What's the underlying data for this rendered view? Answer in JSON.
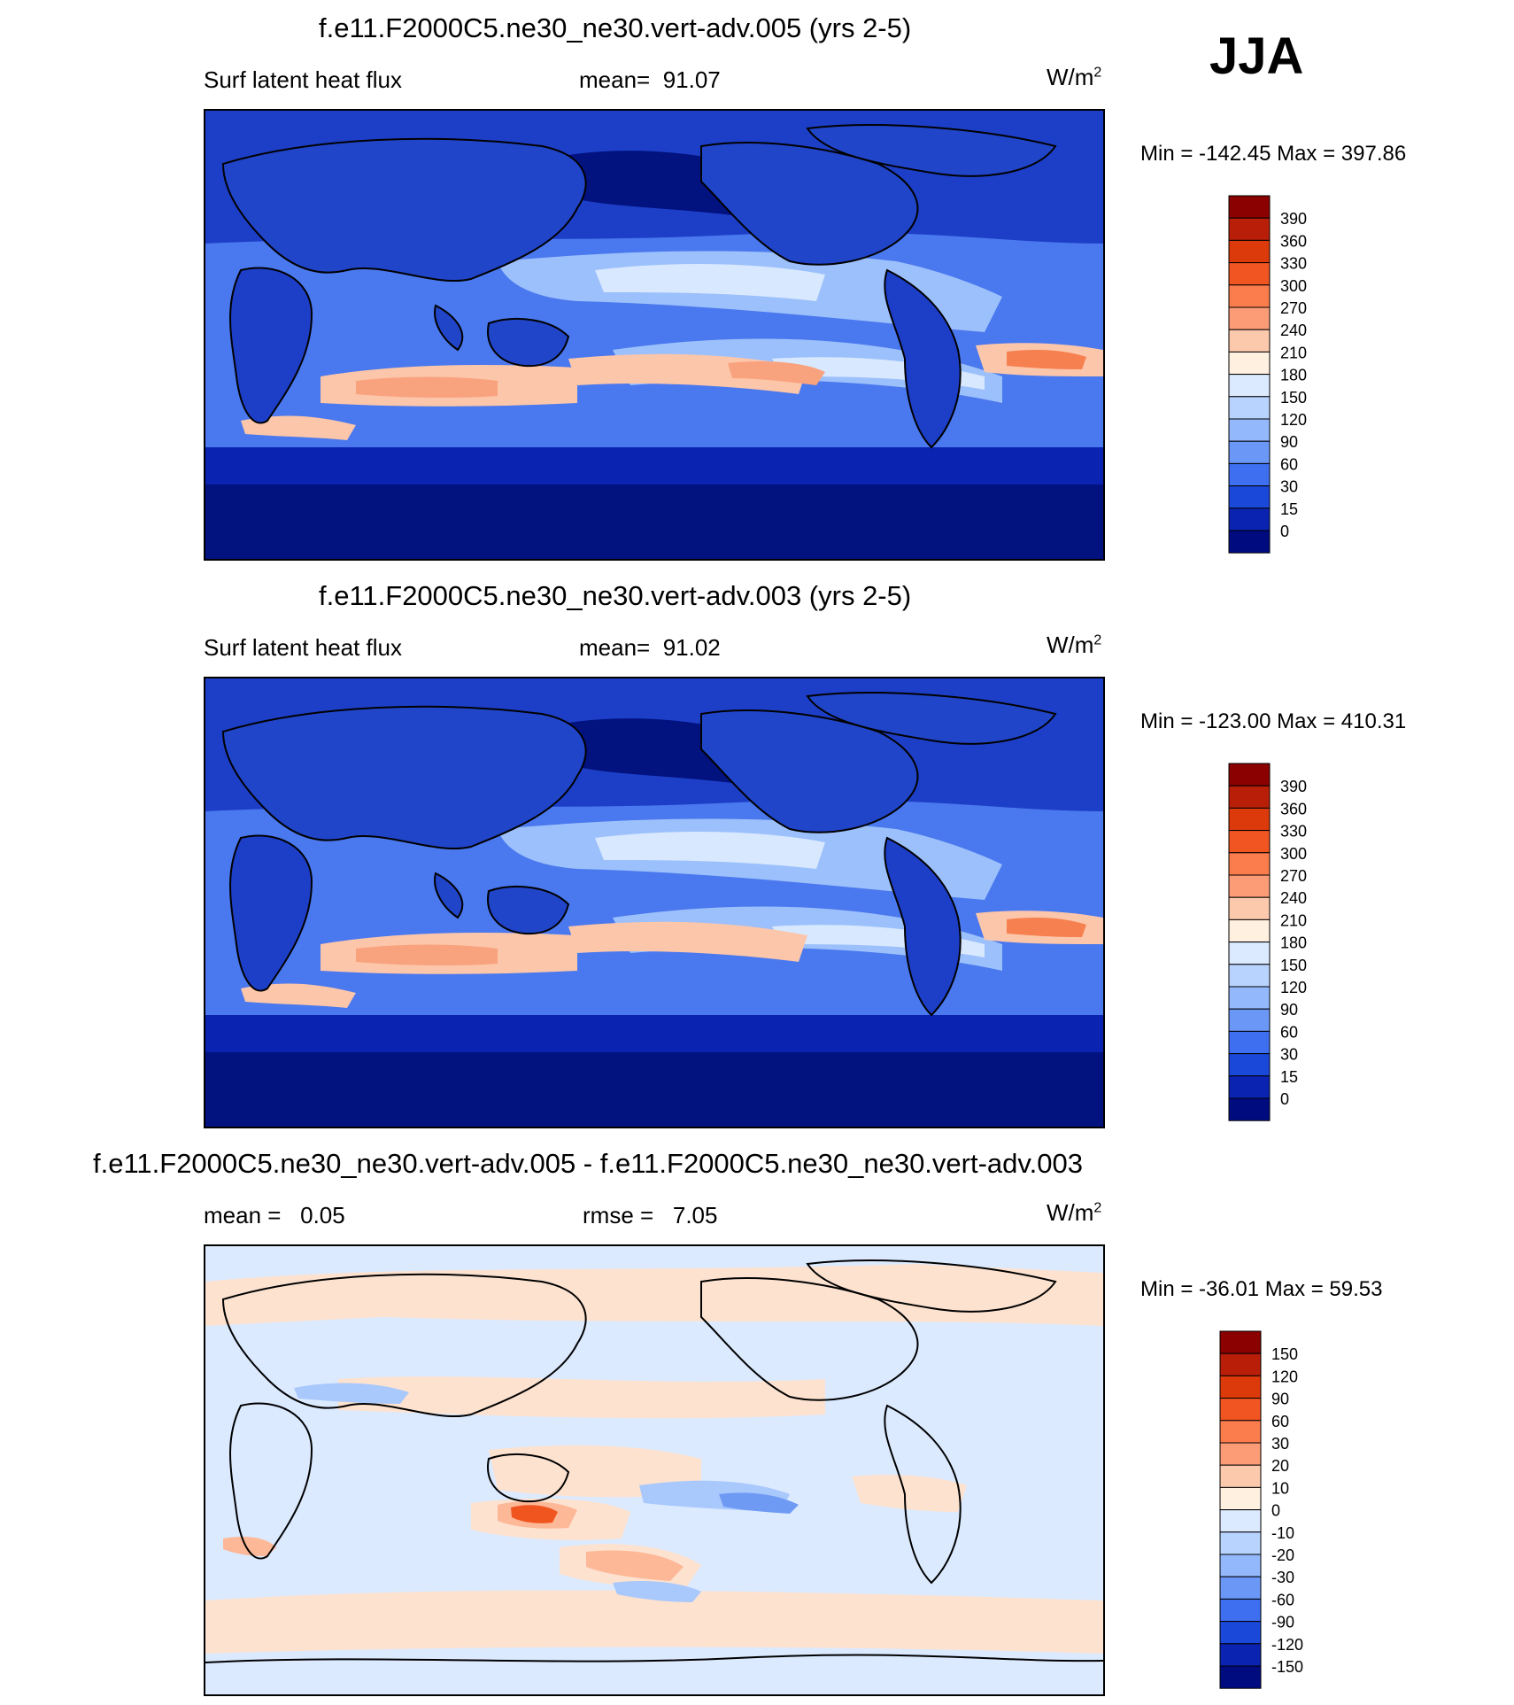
{
  "season": "JJA",
  "panels": [
    {
      "title": "f.e11.F2000C5.ne30_ne30.vert-adv.005 (yrs 2-5)",
      "left_label": "Surf latent heat flux",
      "stat_label": "mean=",
      "stat_value": "91.07",
      "units_base": "W/m",
      "units_exp": "2",
      "minmax": "Min = -142.45 Max = 397.86",
      "colorbar": {
        "levels": [
          "390",
          "360",
          "330",
          "300",
          "270",
          "240",
          "210",
          "180",
          "150",
          "120",
          "90",
          "60",
          "30",
          "15",
          "0"
        ],
        "colors": [
          "#8b0000",
          "#b81e08",
          "#dc3a0a",
          "#f05522",
          "#fb7c4d",
          "#fc9c76",
          "#fdc9ad",
          "#fff0e0",
          "#dbeaff",
          "#b8d4fe",
          "#93b9fc",
          "#6b97f6",
          "#3d6ff0",
          "#1a48d8",
          "#0a23b0",
          "#000b80"
        ]
      },
      "map_palette": {
        "ocean_deep": "#02127f",
        "ocean_mid": "#1d3fc8",
        "ocean": "#4a78ee",
        "band": "#9cc0fb",
        "pale": "#d8e8ff",
        "warm": "#fcc6aa",
        "hot": "#f6804f",
        "land": "#2045c8",
        "coast": "#000000"
      }
    },
    {
      "title": "f.e11.F2000C5.ne30_ne30.vert-adv.003 (yrs 2-5)",
      "left_label": "Surf latent heat flux",
      "stat_label": "mean=",
      "stat_value": "91.02",
      "units_base": "W/m",
      "units_exp": "2",
      "minmax": "Min = -123.00 Max = 410.31",
      "colorbar": {
        "levels": [
          "390",
          "360",
          "330",
          "300",
          "270",
          "240",
          "210",
          "180",
          "150",
          "120",
          "90",
          "60",
          "30",
          "15",
          "0"
        ],
        "colors": [
          "#8b0000",
          "#b81e08",
          "#dc3a0a",
          "#f05522",
          "#fb7c4d",
          "#fc9c76",
          "#fdc9ad",
          "#fff0e0",
          "#dbeaff",
          "#b8d4fe",
          "#93b9fc",
          "#6b97f6",
          "#3d6ff0",
          "#1a48d8",
          "#0a23b0",
          "#000b80"
        ]
      },
      "map_palette": {
        "ocean_deep": "#02127f",
        "ocean_mid": "#1d3fc8",
        "ocean": "#4a78ee",
        "band": "#9cc0fb",
        "pale": "#d8e8ff",
        "warm": "#fcc6aa",
        "hot": "#f6804f",
        "land": "#2045c8",
        "coast": "#000000"
      }
    },
    {
      "title": "f.e11.F2000C5.ne30_ne30.vert-adv.005 - f.e11.F2000C5.ne30_ne30.vert-adv.003",
      "left_label": "mean =",
      "left_value": "0.05",
      "stat_label": "rmse =",
      "stat_value": "7.05",
      "units_base": "W/m",
      "units_exp": "2",
      "minmax": "Min = -36.01 Max =  59.53",
      "colorbar": {
        "levels": [
          "150",
          "120",
          "90",
          "60",
          "30",
          "20",
          "10",
          "0",
          "-10",
          "-20",
          "-30",
          "-60",
          "-90",
          "-120",
          "-150"
        ],
        "colors": [
          "#8b0000",
          "#b81e08",
          "#dc3a0a",
          "#f05522",
          "#fb7c4d",
          "#fc9c76",
          "#fdc9ad",
          "#fff0e0",
          "#dbeaff",
          "#b8d4fe",
          "#93b9fc",
          "#6b97f6",
          "#3d6ff0",
          "#1a48d8",
          "#0a23b0",
          "#000b80"
        ]
      },
      "map_palette": {
        "base": "#dbeaff",
        "warm": "#fde2d0",
        "warm2": "#fcb897",
        "hot": "#f0551f",
        "cool": "#a9c8fc",
        "cool2": "#6f9af4",
        "coast": "#000000"
      }
    }
  ]
}
